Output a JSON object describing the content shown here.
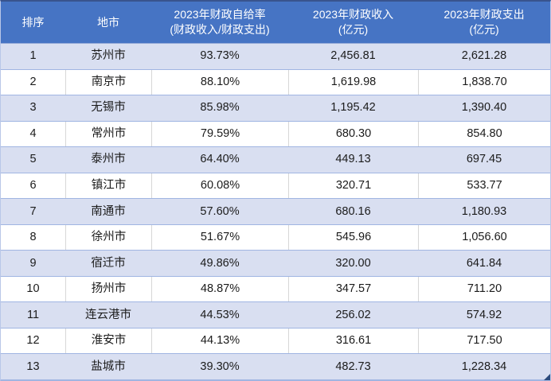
{
  "table": {
    "columns": [
      {
        "label": "排序"
      },
      {
        "label": "地市"
      },
      {
        "label": "2023年财政自给率",
        "label2": "(财政收入/财政支出)"
      },
      {
        "label": "2023年财政收入",
        "label2": "(亿元)"
      },
      {
        "label": "2023年财政支出",
        "label2": "(亿元)"
      }
    ],
    "rows": [
      {
        "rank": "1",
        "city": "苏州市",
        "rate": "93.73%",
        "revenue": "2,456.81",
        "expenditure": "2,621.28"
      },
      {
        "rank": "2",
        "city": "南京市",
        "rate": "88.10%",
        "revenue": "1,619.98",
        "expenditure": "1,838.70"
      },
      {
        "rank": "3",
        "city": "无锡市",
        "rate": "85.98%",
        "revenue": "1,195.42",
        "expenditure": "1,390.40"
      },
      {
        "rank": "4",
        "city": "常州市",
        "rate": "79.59%",
        "revenue": "680.30",
        "expenditure": "854.80"
      },
      {
        "rank": "5",
        "city": "泰州市",
        "rate": "64.40%",
        "revenue": "449.13",
        "expenditure": "697.45"
      },
      {
        "rank": "6",
        "city": "镇江市",
        "rate": "60.08%",
        "revenue": "320.71",
        "expenditure": "533.77"
      },
      {
        "rank": "7",
        "city": "南通市",
        "rate": "57.60%",
        "revenue": "680.16",
        "expenditure": "1,180.93"
      },
      {
        "rank": "8",
        "city": "徐州市",
        "rate": "51.67%",
        "revenue": "545.96",
        "expenditure": "1,056.60"
      },
      {
        "rank": "9",
        "city": "宿迁市",
        "rate": "49.86%",
        "revenue": "320.00",
        "expenditure": "641.84"
      },
      {
        "rank": "10",
        "city": "扬州市",
        "rate": "48.87%",
        "revenue": "347.57",
        "expenditure": "711.20"
      },
      {
        "rank": "11",
        "city": "连云港市",
        "rate": "44.53%",
        "revenue": "256.02",
        "expenditure": "574.92"
      },
      {
        "rank": "12",
        "city": "淮安市",
        "rate": "44.13%",
        "revenue": "316.61",
        "expenditure": "717.50"
      },
      {
        "rank": "13",
        "city": "盐城市",
        "rate": "39.30%",
        "revenue": "482.73",
        "expenditure": "1,228.34"
      }
    ]
  },
  "colors": {
    "header_bg": "#4674C4",
    "header_text": "#FFFFFF",
    "row_alt_bg": "#D9DFF1",
    "row_separator": "#A0B5E2",
    "gridline": "#D7D7D7",
    "top_border": "#39548E",
    "outer_border": "#B9C7E8",
    "body_text": "#1B1B1B",
    "fill_handle": "#2C4A7C"
  }
}
